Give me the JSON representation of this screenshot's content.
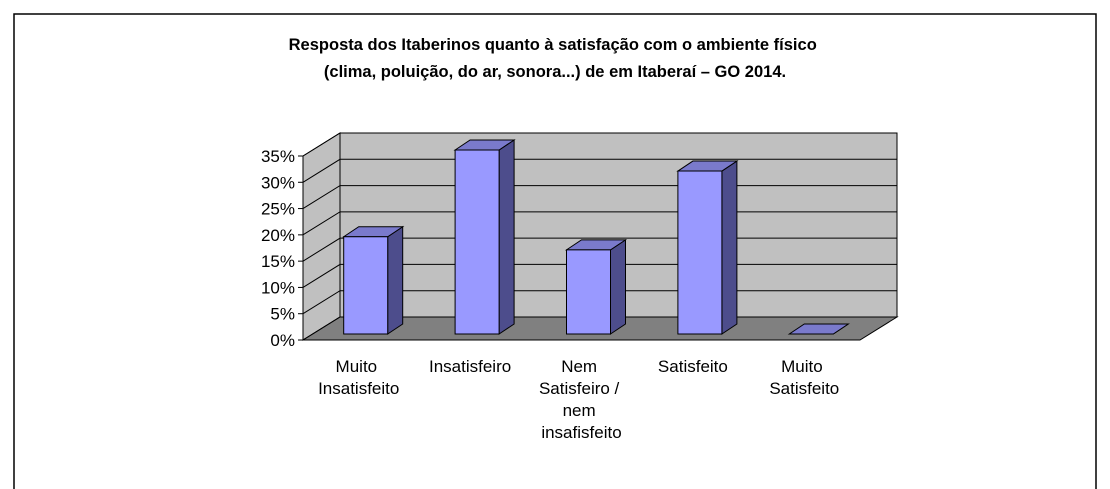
{
  "chart_data": {
    "type": "bar3d",
    "title": "Resposta dos Itaberinos quanto à satisfação com o ambiente físico (clima, poluição, do ar, sonora...) de em Itaberaí – GO 2014.",
    "categories": [
      "Muito Insatisfeito",
      "Insatisfeiro",
      "Nem Satisfeiro / nem insafisfeito",
      "Satisfeito",
      "Muito Satisfeito"
    ],
    "values": [
      18.5,
      35,
      16,
      31,
      0
    ],
    "color": "#9999ff",
    "ylim": [
      0,
      35
    ],
    "yticks": [
      {
        "value": 0,
        "label": "0%"
      },
      {
        "value": 5,
        "label": "5%"
      },
      {
        "value": 10,
        "label": "10%"
      },
      {
        "value": 15,
        "label": "15%"
      },
      {
        "value": 20,
        "label": "20%"
      },
      {
        "value": 25,
        "label": "25%"
      },
      {
        "value": 30,
        "label": "30%"
      },
      {
        "value": 35,
        "label": "35%"
      }
    ],
    "grid": true
  }
}
